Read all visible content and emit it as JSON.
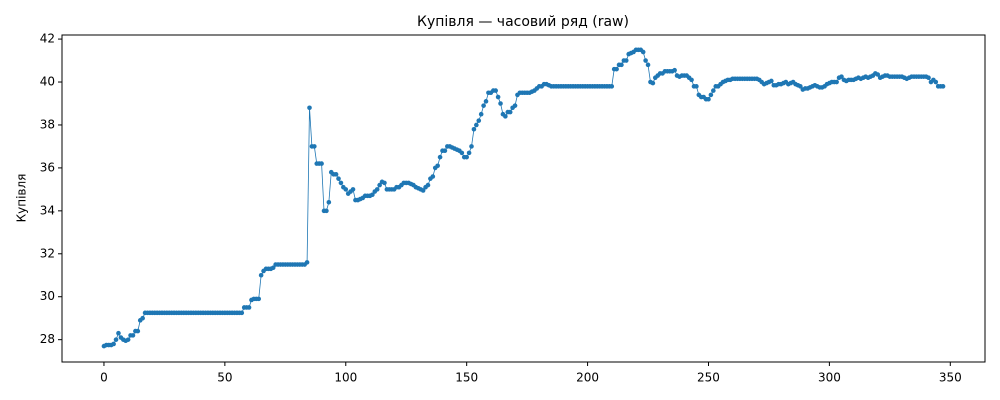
{
  "chart_data": {
    "type": "line",
    "title": "Купівля — часовий ряд (raw)",
    "y_label": "Купівля",
    "color": "#1f77b4",
    "grid": false,
    "marker": true,
    "xlim": [
      -17.35,
      364.35
    ],
    "ylim": [
      26.96,
      42.19
    ],
    "xticks": [
      0,
      50,
      100,
      150,
      200,
      250,
      300,
      350
    ],
    "yticks": [
      28,
      30,
      32,
      34,
      36,
      38,
      40,
      42
    ],
    "values": [
      27.7,
      27.75,
      27.75,
      27.75,
      27.8,
      28.0,
      28.3,
      28.1,
      28.0,
      27.95,
      28.0,
      28.2,
      28.2,
      28.4,
      28.4,
      28.9,
      29.0,
      29.25,
      29.25,
      29.25,
      29.25,
      29.25,
      29.25,
      29.25,
      29.25,
      29.25,
      29.25,
      29.25,
      29.25,
      29.25,
      29.25,
      29.25,
      29.25,
      29.25,
      29.25,
      29.25,
      29.25,
      29.25,
      29.25,
      29.25,
      29.25,
      29.25,
      29.25,
      29.25,
      29.25,
      29.25,
      29.25,
      29.25,
      29.25,
      29.25,
      29.25,
      29.25,
      29.25,
      29.25,
      29.25,
      29.25,
      29.25,
      29.25,
      29.5,
      29.5,
      29.5,
      29.85,
      29.9,
      29.9,
      29.9,
      31.0,
      31.2,
      31.3,
      31.3,
      31.3,
      31.35,
      31.5,
      31.5,
      31.5,
      31.5,
      31.5,
      31.5,
      31.5,
      31.5,
      31.5,
      31.5,
      31.5,
      31.5,
      31.5,
      31.6,
      38.8,
      37.0,
      37.0,
      36.2,
      36.2,
      36.2,
      34.0,
      34.0,
      34.4,
      35.8,
      35.7,
      35.7,
      35.5,
      35.3,
      35.1,
      35.0,
      34.8,
      34.9,
      35.0,
      34.5,
      34.5,
      34.55,
      34.6,
      34.7,
      34.7,
      34.7,
      34.75,
      34.9,
      35.0,
      35.2,
      35.35,
      35.3,
      35.0,
      35.0,
      35.0,
      35.0,
      35.1,
      35.1,
      35.2,
      35.3,
      35.3,
      35.3,
      35.25,
      35.2,
      35.1,
      35.05,
      35.0,
      34.95,
      35.1,
      35.2,
      35.5,
      35.6,
      36.0,
      36.1,
      36.5,
      36.8,
      36.8,
      37.0,
      37.0,
      36.95,
      36.9,
      36.85,
      36.8,
      36.7,
      36.5,
      36.5,
      36.7,
      37.0,
      37.8,
      38.0,
      38.2,
      38.5,
      38.9,
      39.1,
      39.5,
      39.5,
      39.6,
      39.6,
      39.3,
      39.0,
      38.5,
      38.4,
      38.6,
      38.6,
      38.8,
      38.9,
      39.4,
      39.5,
      39.5,
      39.5,
      39.5,
      39.5,
      39.55,
      39.6,
      39.7,
      39.8,
      39.8,
      39.9,
      39.9,
      39.85,
      39.8,
      39.8,
      39.8,
      39.8,
      39.8,
      39.8,
      39.8,
      39.8,
      39.8,
      39.8,
      39.8,
      39.8,
      39.8,
      39.8,
      39.8,
      39.8,
      39.8,
      39.8,
      39.8,
      39.8,
      39.8,
      39.8,
      39.8,
      39.8,
      39.8,
      39.8,
      40.6,
      40.6,
      40.8,
      40.8,
      41.0,
      41.0,
      41.3,
      41.35,
      41.4,
      41.5,
      41.5,
      41.5,
      41.4,
      41.0,
      40.8,
      40.0,
      39.95,
      40.2,
      40.3,
      40.4,
      40.4,
      40.5,
      40.5,
      40.5,
      40.5,
      40.55,
      40.3,
      40.25,
      40.3,
      40.3,
      40.3,
      40.2,
      40.1,
      39.8,
      39.8,
      39.4,
      39.3,
      39.3,
      39.2,
      39.2,
      39.4,
      39.6,
      39.8,
      39.8,
      39.9,
      40.0,
      40.05,
      40.1,
      40.1,
      40.15,
      40.15,
      40.15,
      40.15,
      40.15,
      40.15,
      40.15,
      40.15,
      40.15,
      40.15,
      40.15,
      40.1,
      40.0,
      39.9,
      39.95,
      40.0,
      40.05,
      39.85,
      39.85,
      39.9,
      39.9,
      39.95,
      40.0,
      39.9,
      39.95,
      40.0,
      39.9,
      39.85,
      39.8,
      39.65,
      39.7,
      39.7,
      39.75,
      39.8,
      39.85,
      39.8,
      39.75,
      39.75,
      39.8,
      39.9,
      39.95,
      40.0,
      40.0,
      40.0,
      40.2,
      40.25,
      40.1,
      40.05,
      40.1,
      40.1,
      40.1,
      40.15,
      40.2,
      40.15,
      40.2,
      40.25,
      40.2,
      40.25,
      40.3,
      40.4,
      40.35,
      40.2,
      40.25,
      40.3,
      40.3,
      40.25,
      40.25,
      40.25,
      40.25,
      40.25,
      40.25,
      40.2,
      40.15,
      40.2,
      40.25,
      40.25,
      40.25,
      40.25,
      40.25,
      40.25,
      40.25,
      40.2,
      40.0,
      40.1,
      40.0,
      39.8,
      39.8,
      39.8
    ]
  }
}
